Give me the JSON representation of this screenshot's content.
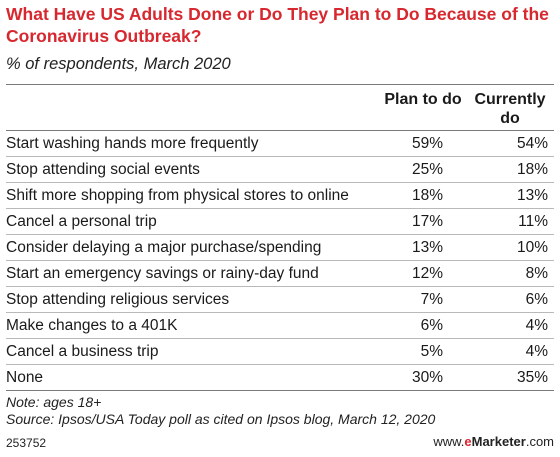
{
  "chart_data": {
    "type": "table",
    "title": "What Have US Adults Done or Do They Plan to Do Because of the Coronavirus Outbreak?",
    "subtitle": "% of respondents, March 2020",
    "columns": [
      "Plan to do",
      "Currently do"
    ],
    "rows": [
      {
        "label": "Start washing hands more frequently",
        "plan": "59%",
        "current": "54%"
      },
      {
        "label": "Stop attending social events",
        "plan": "25%",
        "current": "18%"
      },
      {
        "label": "Shift more shopping from physical stores to online",
        "plan": "18%",
        "current": "13%"
      },
      {
        "label": "Cancel a personal trip",
        "plan": "17%",
        "current": "11%"
      },
      {
        "label": "Consider delaying a major purchase/spending",
        "plan": "13%",
        "current": "10%"
      },
      {
        "label": "Start an emergency savings or rainy-day fund",
        "plan": "12%",
        "current": "8%"
      },
      {
        "label": "Stop attending religious services",
        "plan": "7%",
        "current": "6%"
      },
      {
        "label": "Make changes to a 401K",
        "plan": "6%",
        "current": "4%"
      },
      {
        "label": "Cancel a business trip",
        "plan": "5%",
        "current": "4%"
      },
      {
        "label": "None",
        "plan": "30%",
        "current": "35%"
      }
    ],
    "note": "Note: ages 18+",
    "source": "Source: Ipsos/USA Today poll as cited on Ipsos blog, March 12, 2020"
  },
  "footer": {
    "chart_id": "253752",
    "brand_prefix": "www.",
    "brand_e": "e",
    "brand_name": "Marketer",
    "brand_suffix": ".com"
  },
  "colors": {
    "title": "#d7282f",
    "brand_accent": "#d7282f"
  }
}
